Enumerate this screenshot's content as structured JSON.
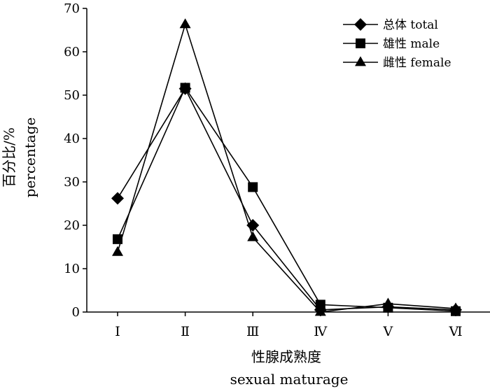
{
  "chart_data": {
    "type": "line",
    "categories": [
      "Ⅰ",
      "Ⅱ",
      "Ⅲ",
      "Ⅳ",
      "Ⅴ",
      "Ⅵ"
    ],
    "series": [
      {
        "name": "总体 total",
        "marker": "diamond",
        "values": [
          26.2,
          51.5,
          20.0,
          0.5,
          1.2,
          0.5
        ]
      },
      {
        "name": "雄性 male",
        "marker": "square",
        "values": [
          16.8,
          51.7,
          28.8,
          1.7,
          1.0,
          0.2
        ]
      },
      {
        "name": "雌性 female",
        "marker": "triangle",
        "values": [
          13.8,
          66.3,
          17.2,
          0.0,
          1.9,
          0.8
        ]
      }
    ],
    "ylim": [
      0,
      70
    ],
    "yticks": [
      0,
      10,
      20,
      30,
      40,
      50,
      60,
      70
    ],
    "ylabel_cn": "百分比/%",
    "ylabel_en": "percentage",
    "xlabel_cn": "性腺成熟度",
    "xlabel_en": "sexual maturage",
    "legend_position": "top-right",
    "grid": false,
    "color": "#000000"
  }
}
